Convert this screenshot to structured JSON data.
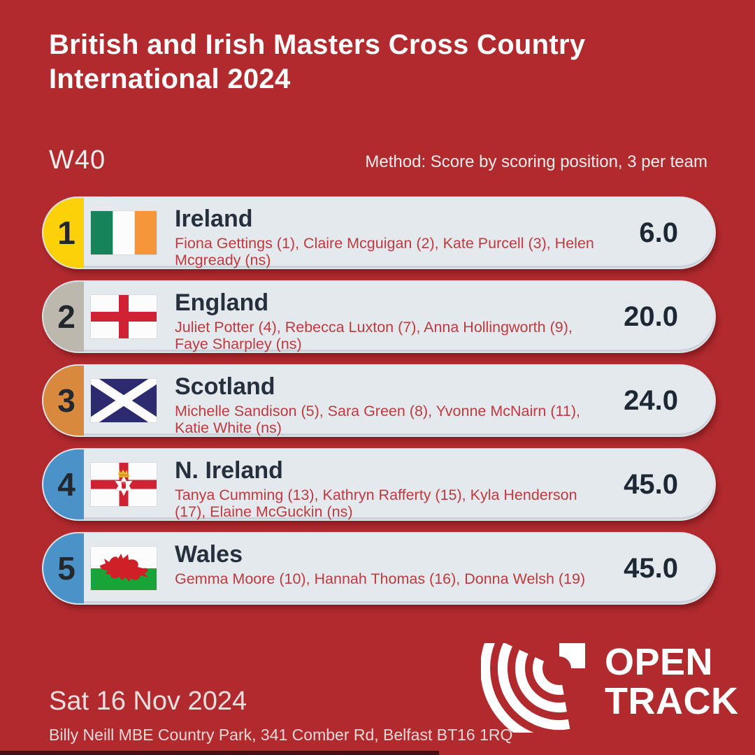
{
  "header": {
    "title": "British and Irish Masters Cross Country International 2024"
  },
  "section": {
    "category": "W40",
    "method": "Method: Score by scoring position, 3 per team"
  },
  "results": [
    {
      "rank": "1",
      "rank_color": "#fdd109",
      "flag": "ireland",
      "team": "Ireland",
      "athletes": "Fiona Gettings (1), Claire Mcguigan (2), Kate Purcell (3), Helen Mcgready (ns)",
      "score": "6.0"
    },
    {
      "rank": "2",
      "rank_color": "#bdb8ae",
      "flag": "england",
      "team": "England",
      "athletes": "Juliet Potter (4), Rebecca Luxton (7), Anna Hollingworth (9), Faye Sharpley (ns)",
      "score": "20.0"
    },
    {
      "rank": "3",
      "rank_color": "#d8893d",
      "flag": "scotland",
      "team": "Scotland",
      "athletes": "Michelle Sandison (5), Sara Green (8), Yvonne McNairn (11), Katie White (ns)",
      "score": "24.0"
    },
    {
      "rank": "4",
      "rank_color": "#4a92c8",
      "flag": "nireland",
      "team": "N. Ireland",
      "athletes": "Tanya Cumming (13), Kathryn Rafferty (15), Kyla Henderson (17), Elaine McGuckin (ns)",
      "score": "45.0"
    },
    {
      "rank": "5",
      "rank_color": "#4a92c8",
      "flag": "wales",
      "team": "Wales",
      "athletes": "Gemma Moore (10), Hannah Thomas (16), Donna Welsh (19)",
      "score": "45.0"
    }
  ],
  "footer": {
    "date": "Sat 16 Nov 2024",
    "venue": "Billy Neill MBE Country Park, 341 Comber Rd, Belfast BT16 1RQ",
    "logo_line1": "OPEN",
    "logo_line2": "TRACK"
  },
  "colors": {
    "background": "#b12a2e",
    "row_background": "#e4e9ee",
    "team_text": "#25303c",
    "athlete_text": "#bd3a40",
    "gold": "#fdd109",
    "silver": "#bdb8ae",
    "bronze": "#d8893d",
    "blue": "#4a92c8",
    "bottom_bar": "#431114"
  }
}
